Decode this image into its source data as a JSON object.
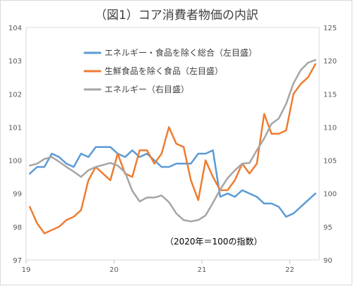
{
  "chart_data": {
    "type": "line",
    "title": "（図1）コア消費者物価の内訳",
    "annotation": "（2020年＝100の指数）",
    "x_tick_labels": [
      "19",
      "20",
      "21",
      "22"
    ],
    "y_left": {
      "min": 97,
      "max": 104,
      "ticks": [
        "97",
        "98",
        "99",
        "100",
        "101",
        "102",
        "103",
        "104"
      ]
    },
    "y_right": {
      "min": 90,
      "max": 125,
      "ticks": [
        "90",
        "95",
        "100",
        "105",
        "110",
        "115",
        "120",
        "125"
      ]
    },
    "x": [
      "2019-01",
      "2019-02",
      "2019-03",
      "2019-04",
      "2019-05",
      "2019-06",
      "2019-07",
      "2019-08",
      "2019-09",
      "2019-10",
      "2019-11",
      "2019-12",
      "2020-01",
      "2020-02",
      "2020-03",
      "2020-04",
      "2020-05",
      "2020-06",
      "2020-07",
      "2020-08",
      "2020-09",
      "2020-10",
      "2020-11",
      "2020-12",
      "2021-01",
      "2021-02",
      "2021-03",
      "2021-04",
      "2021-05",
      "2021-06",
      "2021-07",
      "2021-08",
      "2021-09",
      "2021-10",
      "2021-11",
      "2021-12",
      "2022-01",
      "2022-02",
      "2022-03",
      "2022-04"
    ],
    "series": [
      {
        "name": "エネルギー・食品を除く総合（左目盛）",
        "axis": "left",
        "color": "#5b9bd5",
        "values": [
          99.6,
          99.8,
          99.8,
          100.2,
          100.1,
          99.9,
          99.8,
          100.2,
          100.1,
          100.4,
          100.4,
          100.4,
          100.2,
          100.1,
          100.3,
          100.1,
          100.2,
          100.0,
          99.8,
          99.8,
          99.9,
          99.9,
          99.9,
          100.2,
          100.2,
          100.3,
          98.9,
          99.0,
          98.9,
          99.1,
          99.0,
          98.9,
          98.7,
          98.7,
          98.6,
          98.3,
          98.4,
          98.6,
          98.8,
          99.0
        ]
      },
      {
        "name": "生鮮食品を除く食品（左目盛）",
        "axis": "left",
        "color": "#ed7d31",
        "values": [
          98.6,
          98.1,
          97.8,
          97.9,
          98.0,
          98.2,
          98.3,
          98.5,
          99.4,
          99.8,
          99.6,
          99.4,
          100.2,
          99.6,
          99.5,
          100.3,
          100.3,
          99.9,
          100.2,
          101.0,
          100.5,
          100.4,
          99.4,
          98.8,
          100.0,
          99.5,
          99.1,
          99.1,
          99.4,
          99.9,
          99.6,
          99.9,
          101.4,
          100.8,
          100.8,
          100.9,
          102.0,
          102.3,
          102.5,
          102.9
        ]
      },
      {
        "name": "エネルギー（右目盛）",
        "axis": "right",
        "color": "#a5a5a5",
        "values": [
          104.2,
          104.5,
          105.2,
          105.5,
          104.8,
          104.0,
          103.3,
          102.5,
          103.5,
          104.0,
          104.3,
          104.6,
          104.2,
          103.2,
          100.4,
          98.8,
          99.4,
          99.4,
          99.7,
          98.7,
          97.0,
          96.0,
          95.8,
          96.0,
          96.7,
          98.6,
          100.6,
          102.3,
          103.5,
          104.5,
          104.6,
          106.5,
          108.3,
          110.5,
          111.3,
          113.5,
          116.6,
          118.6,
          119.7,
          120.1
        ]
      }
    ]
  }
}
